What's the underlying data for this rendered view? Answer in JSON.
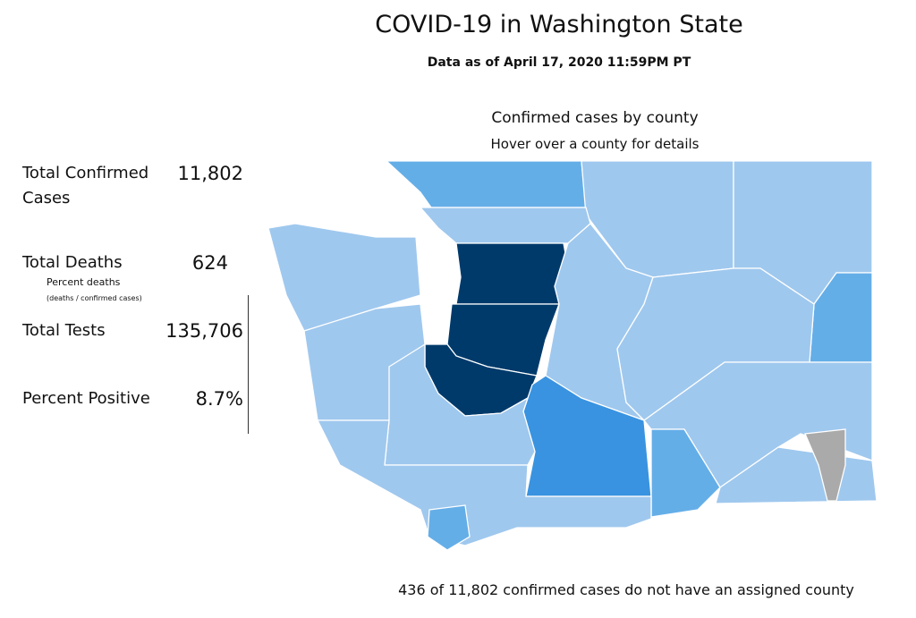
{
  "header": {
    "title": "COVID-19 in Washington State",
    "subtitle": "Data as of April 17, 2020 11:59PM PT"
  },
  "stats": [
    {
      "label": "Total Confirmed Cases",
      "value": "11,802"
    },
    {
      "label": "Total Deaths",
      "value": "624",
      "note": "Percent deaths",
      "note_detail": "(deaths / confirmed cases)"
    },
    {
      "label": "Total Tests",
      "value": "135,706"
    },
    {
      "label": "Percent Positive",
      "value": "8.7%"
    }
  ],
  "map": {
    "title": "Confirmed cases by county",
    "subtitle": "Hover over a county for details",
    "footnote": "436 of 11,802 confirmed cases do not have an assigned county"
  }
}
